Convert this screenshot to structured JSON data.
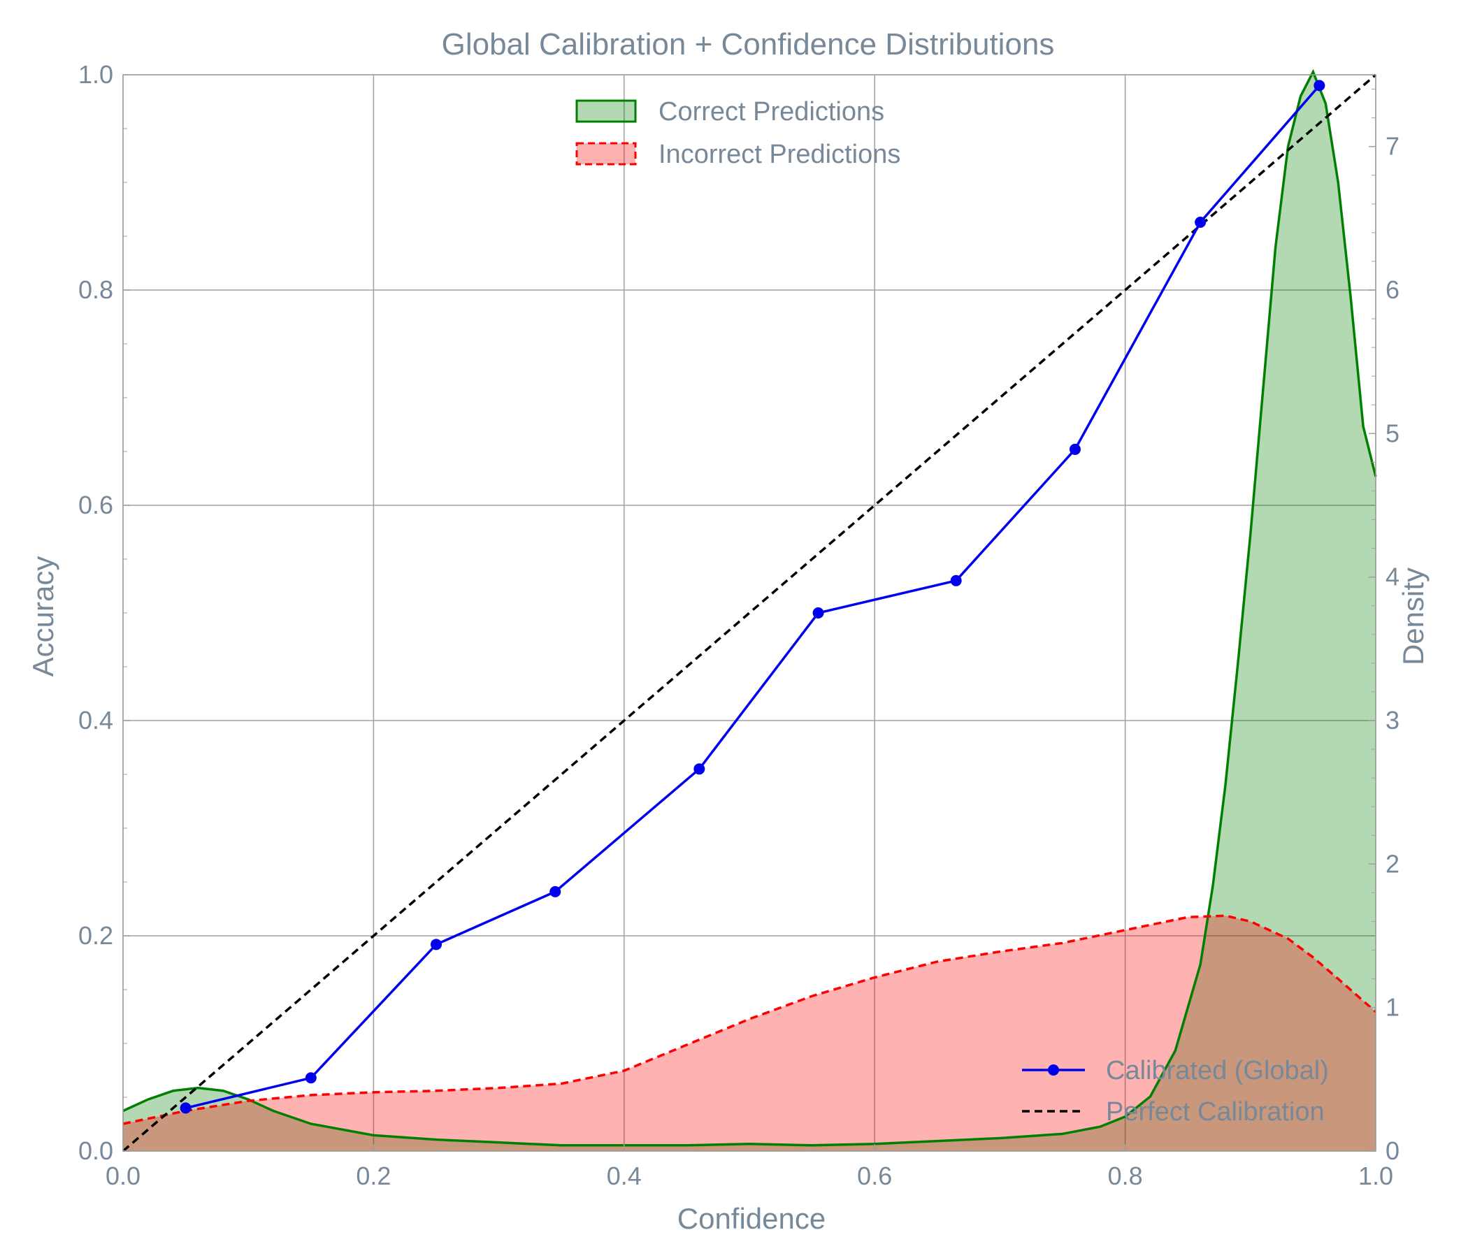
{
  "chart_data": {
    "type": "line",
    "title": "Global Calibration + Confidence Distributions",
    "xlabel": "Confidence",
    "ylabel": "Accuracy",
    "y2label": "Density",
    "xlim": [
      0,
      1
    ],
    "ylim": [
      0,
      1
    ],
    "y2lim": [
      0,
      7.5
    ],
    "xticks": [
      "0.0",
      "0.2",
      "0.4",
      "0.6",
      "0.8",
      "1.0"
    ],
    "yticks": [
      "0.0",
      "0.2",
      "0.4",
      "0.6",
      "0.8",
      "1.0"
    ],
    "y2ticks": [
      "0",
      "1",
      "2",
      "3",
      "4",
      "5",
      "6",
      "7"
    ],
    "grid": true,
    "text_color": "#778899",
    "series": [
      {
        "name": "Calibrated (Global)",
        "axis": "left",
        "style": "line-marker",
        "color": "#0000ee",
        "x": [
          0.05,
          0.15,
          0.25,
          0.345,
          0.46,
          0.555,
          0.665,
          0.76,
          0.86,
          0.955
        ],
        "y": [
          0.04,
          0.068,
          0.192,
          0.241,
          0.355,
          0.5,
          0.53,
          0.652,
          0.863,
          0.99
        ]
      },
      {
        "name": "Perfect Calibration",
        "axis": "left",
        "style": "dashed",
        "color": "#000000",
        "x": [
          0,
          1
        ],
        "y": [
          0,
          1
        ]
      },
      {
        "name": "Correct Predictions",
        "axis": "right",
        "style": "density-fill",
        "color": "#008000",
        "fill": "rgba(0,128,0,0.30)",
        "x": [
          0.0,
          0.02,
          0.04,
          0.06,
          0.08,
          0.1,
          0.12,
          0.15,
          0.2,
          0.25,
          0.3,
          0.35,
          0.4,
          0.45,
          0.5,
          0.55,
          0.6,
          0.65,
          0.7,
          0.75,
          0.78,
          0.8,
          0.82,
          0.84,
          0.86,
          0.87,
          0.88,
          0.89,
          0.9,
          0.91,
          0.92,
          0.93,
          0.94,
          0.95,
          0.96,
          0.97,
          0.98,
          0.99,
          1.0
        ],
        "y": [
          0.28,
          0.36,
          0.42,
          0.44,
          0.42,
          0.36,
          0.28,
          0.19,
          0.11,
          0.08,
          0.06,
          0.04,
          0.04,
          0.04,
          0.05,
          0.04,
          0.05,
          0.07,
          0.09,
          0.12,
          0.17,
          0.24,
          0.38,
          0.7,
          1.3,
          1.85,
          2.55,
          3.4,
          4.3,
          5.3,
          6.3,
          7.0,
          7.35,
          7.52,
          7.3,
          6.75,
          5.95,
          5.05,
          4.7
        ]
      },
      {
        "name": "Incorrect Predictions",
        "axis": "right",
        "style": "density-fill-dashed",
        "color": "#ff0000",
        "fill": "rgba(255,0,0,0.30)",
        "x": [
          0.0,
          0.05,
          0.1,
          0.15,
          0.2,
          0.25,
          0.3,
          0.35,
          0.4,
          0.45,
          0.5,
          0.55,
          0.6,
          0.65,
          0.7,
          0.75,
          0.8,
          0.85,
          0.88,
          0.9,
          0.93,
          0.95,
          0.97,
          1.0
        ],
        "y": [
          0.19,
          0.28,
          0.35,
          0.39,
          0.41,
          0.42,
          0.44,
          0.47,
          0.56,
          0.74,
          0.92,
          1.08,
          1.21,
          1.32,
          1.39,
          1.45,
          1.54,
          1.63,
          1.64,
          1.6,
          1.48,
          1.35,
          1.2,
          0.97
        ]
      }
    ],
    "legends": [
      {
        "placement": "top-center",
        "entries": [
          "Correct Predictions",
          "Incorrect Predictions"
        ]
      },
      {
        "placement": "lower-right",
        "entries": [
          "Calibrated (Global)",
          "Perfect Calibration"
        ]
      }
    ]
  }
}
